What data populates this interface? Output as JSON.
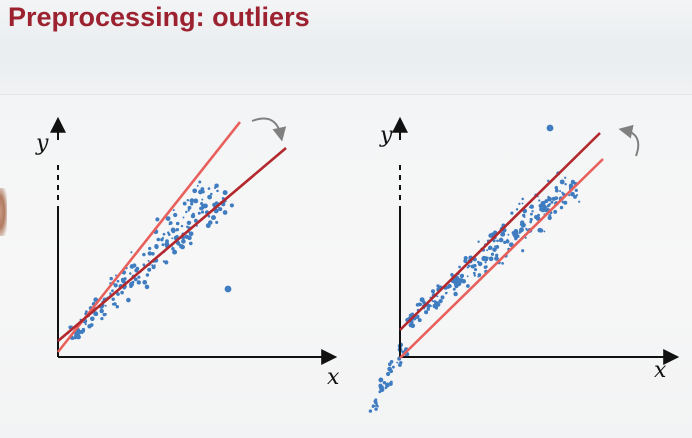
{
  "slide": {
    "title": "Preprocessing: outliers"
  },
  "colors": {
    "title": "#9c2230",
    "data_points": "#3f7cc0",
    "fit_line_dark": "#b3282d",
    "fit_line_light": "#e8605c",
    "axis": "#111111",
    "rotation_arrow": "#808080"
  },
  "plots": [
    {
      "name": "left",
      "y_axis_label": "y",
      "x_axis_label": "x",
      "outlier_position": "below-right of the point cloud",
      "rotation_arrow": "clockwise",
      "line_count": 2
    },
    {
      "name": "right",
      "y_axis_label": "y",
      "x_axis_label": "x",
      "outlier_position": "above the point cloud",
      "rotation_arrow": "counter-clockwise",
      "line_count": 2
    }
  ]
}
